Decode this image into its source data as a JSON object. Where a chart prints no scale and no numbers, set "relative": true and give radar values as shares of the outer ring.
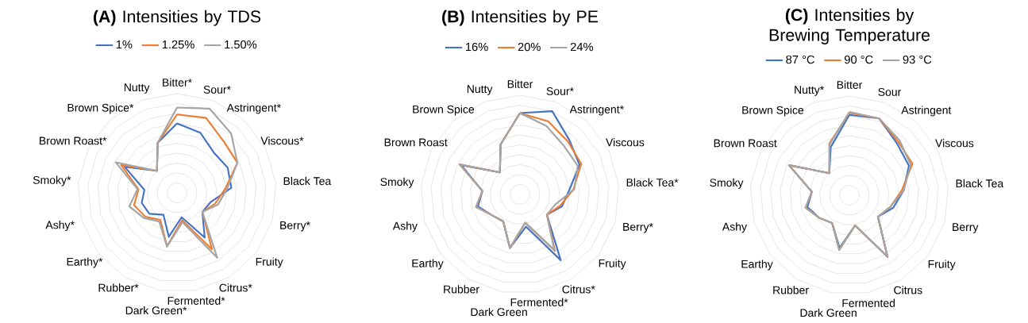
{
  "chart_data": [
    {
      "type": "radar",
      "title": "**(A)** Intensities by TDS",
      "relative": true,
      "grid": true,
      "legend": "top",
      "categories": [
        "Bitter*",
        "Sour*",
        "Astringent*",
        "Viscous*",
        "Black Tea",
        "Berry*",
        "Fruity",
        "Citrus*",
        "Fermented*",
        "Dark Green*",
        "Rubber*",
        "Earthy*",
        "Ashy*",
        "Smoky*",
        "Brown Roast*",
        "Brown Spice*",
        "Nutty"
      ],
      "series": [
        {
          "name": "1%",
          "color": "#4472c4",
          "values": [
            0.7,
            0.65,
            0.55,
            0.57,
            0.55,
            0.35,
            0.32,
            0.53,
            0.25,
            0.45,
            0.26,
            0.35,
            0.37,
            0.33,
            0.59,
            0.3,
            0.54
          ]
        },
        {
          "name": "1.25%",
          "color": "#ed7d31",
          "values": [
            0.79,
            0.81,
            0.7,
            0.68,
            0.49,
            0.4,
            0.32,
            0.67,
            0.28,
            0.55,
            0.32,
            0.4,
            0.45,
            0.39,
            0.63,
            0.3,
            0.54
          ]
        },
        {
          "name": "1.50%",
          "color": "#a5a5a5",
          "values": [
            0.86,
            0.91,
            0.81,
            0.68,
            0.51,
            0.43,
            0.32,
            0.77,
            0.3,
            0.55,
            0.34,
            0.42,
            0.5,
            0.4,
            0.69,
            0.3,
            0.54
          ]
        }
      ]
    },
    {
      "type": "radar",
      "title": "**(B)** Intensities by PE",
      "relative": true,
      "grid": true,
      "legend": "top",
      "categories": [
        "Bitter",
        "Sour*",
        "Astringent*",
        "Viscous",
        "Black Tea*",
        "Berry*",
        "Fruity",
        "Citrus*",
        "Fermented*",
        "Dark Green",
        "Rubber",
        "Earthy",
        "Ashy",
        "Smoky",
        "Brown Roast",
        "Brown Spice",
        "Nutty"
      ],
      "series": [
        {
          "name": "16%",
          "color": "#4472c4",
          "values": [
            0.82,
            0.9,
            0.74,
            0.67,
            0.5,
            0.44,
            0.34,
            0.78,
            0.33,
            0.55,
            0.32,
            0.35,
            0.44,
            0.38,
            0.66,
            0.3,
            0.54
          ]
        },
        {
          "name": "20%",
          "color": "#ed7d31",
          "values": [
            0.82,
            0.79,
            0.72,
            0.69,
            0.54,
            0.42,
            0.34,
            0.67,
            0.29,
            0.55,
            0.32,
            0.35,
            0.46,
            0.38,
            0.68,
            0.3,
            0.54
          ]
        },
        {
          "name": "24%",
          "color": "#a5a5a5",
          "values": [
            0.82,
            0.74,
            0.66,
            0.65,
            0.55,
            0.37,
            0.34,
            0.66,
            0.29,
            0.55,
            0.32,
            0.35,
            0.46,
            0.38,
            0.68,
            0.3,
            0.54
          ]
        }
      ]
    },
    {
      "type": "radar",
      "title": "**(C)** Intensities by Brewing Temperature",
      "relative": true,
      "grid": true,
      "legend": "top",
      "categories": [
        "Bitter",
        "Sour",
        "Astringent",
        "Viscous",
        "Black Tea",
        "Berry",
        "Fruity",
        "Citrus",
        "Fermented",
        "Dark Green",
        "Rubber",
        "Earthy",
        "Ashy",
        "Smoky",
        "Brown Roast",
        "Brown Spice",
        "Nutty*"
      ],
      "series": [
        {
          "name": "87 °C",
          "color": "#4472c4",
          "values": [
            0.81,
            0.83,
            0.71,
            0.67,
            0.55,
            0.46,
            0.36,
            0.73,
            0.31,
            0.54,
            0.33,
            0.38,
            0.44,
            0.38,
            0.68,
            0.3,
            0.52
          ]
        },
        {
          "name": "90 °C",
          "color": "#ed7d31",
          "values": [
            0.83,
            0.83,
            0.73,
            0.71,
            0.53,
            0.43,
            0.36,
            0.73,
            0.31,
            0.56,
            0.33,
            0.38,
            0.46,
            0.38,
            0.68,
            0.3,
            0.56
          ]
        },
        {
          "name": "93 °C",
          "color": "#a5a5a5",
          "values": [
            0.84,
            0.83,
            0.75,
            0.69,
            0.55,
            0.43,
            0.36,
            0.73,
            0.31,
            0.56,
            0.33,
            0.38,
            0.46,
            0.38,
            0.68,
            0.3,
            0.55
          ]
        }
      ]
    }
  ]
}
